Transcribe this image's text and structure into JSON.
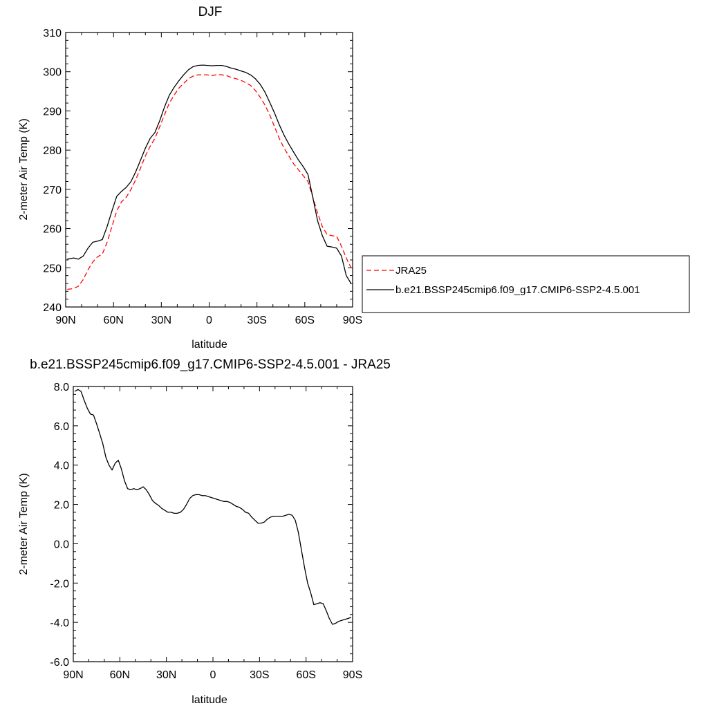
{
  "chart_data": [
    {
      "type": "line",
      "title": "DJF",
      "xlabel": "latitude",
      "ylabel": "2-meter Air Temp (K)",
      "xlim": [
        -90,
        90
      ],
      "ylim": [
        240,
        310
      ],
      "xticks": [
        -90,
        -60,
        -30,
        0,
        30,
        60,
        90
      ],
      "xtick_labels": [
        "90N",
        "60N",
        "30N",
        "0",
        "30S",
        "60S",
        "90S"
      ],
      "yticks": [
        240,
        250,
        260,
        270,
        280,
        290,
        300,
        310
      ],
      "ytick_labels": [
        "240",
        "250",
        "260",
        "270",
        "280",
        "290",
        "300",
        "310"
      ],
      "legend": "right",
      "series": [
        {
          "name": "JRA25",
          "color": "#ff0000",
          "dash": "dashed",
          "x": [
            -89,
            -85,
            -82,
            -79,
            -76,
            -73,
            -70,
            -67,
            -64,
            -61,
            -58,
            -55,
            -52,
            -49,
            -46,
            -43,
            -40,
            -37,
            -34,
            -31,
            -28,
            -25,
            -22,
            -19,
            -16,
            -13,
            -10,
            -7,
            -4,
            -1,
            2,
            5,
            8,
            11,
            14,
            17,
            20,
            23,
            26,
            29,
            32,
            35,
            38,
            41,
            44,
            47,
            50,
            53,
            56,
            59,
            62,
            65,
            68,
            71,
            74,
            77,
            80,
            83,
            86,
            89
          ],
          "y": [
            244.5,
            244.7,
            245.3,
            247.0,
            249.5,
            251.5,
            252.8,
            253.5,
            256.5,
            260.5,
            264.5,
            266.8,
            268.0,
            270.0,
            272.5,
            275.5,
            278.5,
            281.0,
            283.0,
            286.0,
            289.0,
            292.0,
            294.0,
            295.8,
            297.0,
            298.2,
            298.9,
            299.2,
            299.2,
            299.2,
            299.0,
            299.3,
            299.2,
            299.0,
            298.5,
            298.2,
            297.8,
            297.2,
            296.5,
            295.2,
            293.5,
            291.5,
            289.0,
            286.0,
            283.0,
            280.5,
            278.5,
            276.5,
            275.0,
            273.5,
            272.0,
            268.0,
            264.0,
            260.5,
            258.5,
            258.2,
            258.0,
            255.5,
            252.5,
            250.0
          ]
        },
        {
          "name": "b.e21.BSSP245cmip6.f09_g17.CMIP6-SSP2-4.5.001",
          "color": "#000000",
          "dash": "solid",
          "x": [
            -89,
            -85,
            -82,
            -79,
            -76,
            -73,
            -70,
            -67,
            -64,
            -61,
            -58,
            -55,
            -52,
            -49,
            -46,
            -43,
            -40,
            -37,
            -34,
            -31,
            -28,
            -25,
            -22,
            -19,
            -16,
            -13,
            -10,
            -7,
            -4,
            -1,
            2,
            5,
            8,
            11,
            14,
            17,
            20,
            23,
            26,
            29,
            32,
            35,
            38,
            41,
            44,
            47,
            50,
            53,
            56,
            59,
            62,
            65,
            68,
            71,
            74,
            77,
            80,
            83,
            86,
            89
          ],
          "y": [
            252.2,
            252.5,
            252.2,
            253.0,
            255.0,
            256.5,
            256.8,
            257.2,
            260.5,
            264.5,
            268.2,
            269.5,
            270.5,
            272.0,
            274.5,
            277.5,
            280.5,
            283.0,
            284.5,
            287.5,
            291.0,
            294.0,
            296.0,
            297.7,
            299.2,
            300.5,
            301.3,
            301.6,
            301.7,
            301.6,
            301.5,
            301.6,
            301.6,
            301.3,
            300.9,
            300.6,
            300.2,
            299.8,
            299.2,
            298.2,
            296.8,
            294.8,
            292.2,
            289.5,
            286.5,
            283.8,
            281.5,
            279.5,
            277.5,
            275.8,
            273.8,
            268.0,
            262.0,
            258.2,
            255.5,
            255.3,
            255.0,
            253.0,
            248.0,
            246.0
          ]
        }
      ]
    },
    {
      "type": "line",
      "title": "b.e21.BSSP245cmip6.f09_g17.CMIP6-SSP2-4.5.001 - JRA25",
      "xlabel": "latitude",
      "ylabel": "2-meter Air Temp (K)",
      "xlim": [
        -90,
        90
      ],
      "ylim": [
        -6,
        8
      ],
      "xticks": [
        -90,
        -60,
        -30,
        0,
        30,
        60,
        90
      ],
      "xtick_labels": [
        "90N",
        "60N",
        "30N",
        "0",
        "30S",
        "60S",
        "90S"
      ],
      "yticks": [
        -6,
        -4,
        -2,
        0,
        2,
        4,
        6,
        8
      ],
      "ytick_labels": [
        "-6.0",
        "-4.0",
        "-2.0",
        "0.0",
        "2.0",
        "4.0",
        "6.0",
        "8.0"
      ],
      "series": [
        {
          "color": "#000000",
          "dash": "solid",
          "x": [
            -89,
            -87,
            -85,
            -83,
            -81,
            -79,
            -77,
            -75,
            -73,
            -71,
            -69,
            -67,
            -65,
            -63,
            -61,
            -59,
            -57,
            -55,
            -53,
            -51,
            -49,
            -47,
            -45,
            -43,
            -41,
            -39,
            -37,
            -35,
            -33,
            -31,
            -29,
            -27,
            -25,
            -23,
            -21,
            -19,
            -17,
            -15,
            -13,
            -11,
            -9,
            -7,
            -5,
            -3,
            -1,
            1,
            3,
            5,
            7,
            9,
            11,
            13,
            15,
            17,
            19,
            21,
            23,
            25,
            27,
            29,
            31,
            33,
            35,
            37,
            39,
            41,
            43,
            45,
            47,
            49,
            51,
            53,
            55,
            57,
            59,
            61,
            63,
            65,
            67,
            69,
            71,
            73,
            75,
            77,
            79,
            81,
            83,
            85,
            87,
            89
          ],
          "y": [
            7.75,
            7.85,
            7.75,
            7.3,
            6.9,
            6.6,
            6.55,
            6.1,
            5.6,
            5.1,
            4.4,
            4.0,
            3.75,
            4.1,
            4.25,
            3.8,
            3.2,
            2.8,
            2.75,
            2.8,
            2.75,
            2.8,
            2.9,
            2.75,
            2.5,
            2.2,
            2.05,
            1.95,
            1.8,
            1.7,
            1.6,
            1.6,
            1.55,
            1.55,
            1.6,
            1.75,
            2.0,
            2.3,
            2.45,
            2.5,
            2.5,
            2.45,
            2.45,
            2.4,
            2.35,
            2.3,
            2.25,
            2.2,
            2.15,
            2.15,
            2.1,
            2.0,
            1.9,
            1.85,
            1.75,
            1.6,
            1.55,
            1.35,
            1.2,
            1.05,
            1.05,
            1.1,
            1.25,
            1.35,
            1.4,
            1.4,
            1.4,
            1.4,
            1.45,
            1.5,
            1.45,
            1.2,
            0.6,
            -0.3,
            -1.2,
            -2.0,
            -2.5,
            -3.1,
            -3.05,
            -3.0,
            -3.05,
            -3.4,
            -3.8,
            -4.1,
            -4.05,
            -3.95,
            -3.9,
            -3.85,
            -3.8,
            -3.75
          ]
        }
      ]
    }
  ]
}
